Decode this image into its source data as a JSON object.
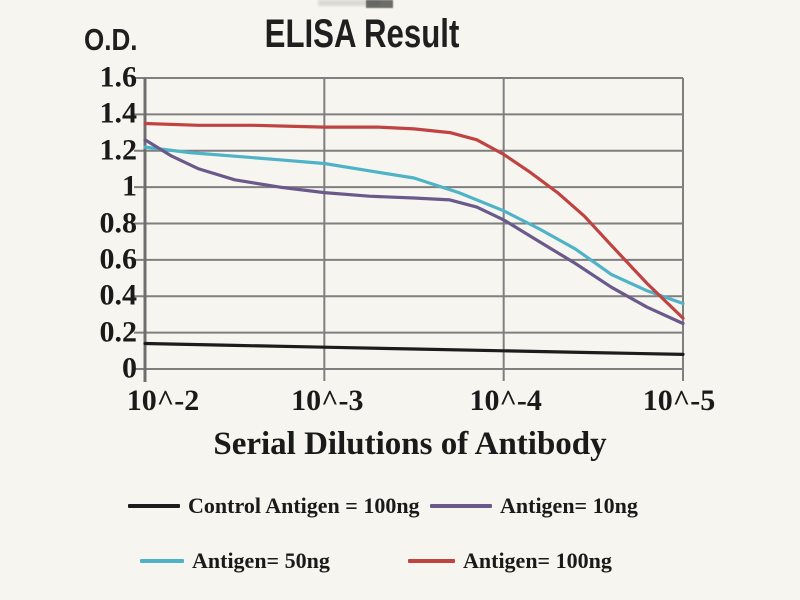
{
  "title": "ELISA Result",
  "y_axis_label": "O.D.",
  "x_axis_label": "Serial Dilutions of Antibody",
  "colors": {
    "background": "#f6f5f0",
    "gridline": "#7f7f7f",
    "axis": "#6e6e6e",
    "text": "#1a1a1a",
    "series_black": "#1c1c1c",
    "series_purple": "#6a5a8c",
    "series_cyan": "#4fb3c8",
    "series_red": "#c04341"
  },
  "chart_data": {
    "type": "line",
    "title": "ELISA Result",
    "xlabel": "Serial Dilutions of Antibody",
    "ylabel": "O.D.",
    "x_tick_labels": [
      "10^-2",
      "10^-3",
      "10^-4",
      "10^-5"
    ],
    "y_tick_labels": [
      "0",
      "0.2",
      "0.4",
      "0.6",
      "0.8",
      "1",
      "1.2",
      "1.4",
      "1.6"
    ],
    "y_tick_values": [
      0,
      0.2,
      0.4,
      0.6,
      0.8,
      1,
      1.2,
      1.4,
      1.6
    ],
    "ylim": [
      0,
      1.6
    ],
    "grid": true,
    "legend_position": "bottom",
    "series": [
      {
        "name": "Control Antigen = 100ng",
        "color": "#1c1c1c",
        "values_at_ticks": [
          0.14,
          0.12,
          0.1,
          0.08
        ],
        "points": [
          [
            0,
            0.14
          ],
          [
            0.5,
            0.13
          ],
          [
            1,
            0.12
          ],
          [
            1.5,
            0.11
          ],
          [
            2,
            0.1
          ],
          [
            2.5,
            0.09
          ],
          [
            3,
            0.08
          ]
        ]
      },
      {
        "name": "Antigen= 10ng",
        "color": "#6a5a8c",
        "values_at_ticks": [
          1.26,
          0.97,
          0.82,
          0.25
        ],
        "points": [
          [
            0,
            1.26
          ],
          [
            0.15,
            1.17
          ],
          [
            0.3,
            1.1
          ],
          [
            0.5,
            1.04
          ],
          [
            0.75,
            1.0
          ],
          [
            1,
            0.97
          ],
          [
            1.25,
            0.95
          ],
          [
            1.5,
            0.94
          ],
          [
            1.7,
            0.93
          ],
          [
            1.85,
            0.89
          ],
          [
            2,
            0.82
          ],
          [
            2.2,
            0.7
          ],
          [
            2.4,
            0.58
          ],
          [
            2.6,
            0.45
          ],
          [
            2.8,
            0.34
          ],
          [
            3,
            0.25
          ]
        ]
      },
      {
        "name": "Antigen= 50ng",
        "color": "#4fb3c8",
        "values_at_ticks": [
          1.22,
          1.13,
          0.87,
          0.36
        ],
        "points": [
          [
            0,
            1.22
          ],
          [
            0.25,
            1.19
          ],
          [
            0.5,
            1.17
          ],
          [
            0.75,
            1.15
          ],
          [
            1,
            1.13
          ],
          [
            1.25,
            1.09
          ],
          [
            1.5,
            1.05
          ],
          [
            1.75,
            0.97
          ],
          [
            2,
            0.87
          ],
          [
            2.2,
            0.77
          ],
          [
            2.4,
            0.66
          ],
          [
            2.6,
            0.52
          ],
          [
            2.8,
            0.43
          ],
          [
            3,
            0.36
          ]
        ]
      },
      {
        "name": "Antigen= 100ng",
        "color": "#c04341",
        "values_at_ticks": [
          1.35,
          1.33,
          1.18,
          0.28
        ],
        "points": [
          [
            0,
            1.35
          ],
          [
            0.3,
            1.34
          ],
          [
            0.6,
            1.34
          ],
          [
            1,
            1.33
          ],
          [
            1.3,
            1.33
          ],
          [
            1.5,
            1.32
          ],
          [
            1.7,
            1.3
          ],
          [
            1.85,
            1.26
          ],
          [
            2,
            1.18
          ],
          [
            2.15,
            1.08
          ],
          [
            2.3,
            0.97
          ],
          [
            2.45,
            0.84
          ],
          [
            2.6,
            0.68
          ],
          [
            2.8,
            0.47
          ],
          [
            3,
            0.28
          ]
        ]
      }
    ]
  },
  "legend": {
    "items": [
      {
        "label": "Control Antigen = 100ng",
        "series": 0
      },
      {
        "label": "Antigen= 10ng",
        "series": 1
      },
      {
        "label": "Antigen= 50ng",
        "series": 2
      },
      {
        "label": "Antigen= 100ng",
        "series": 3
      }
    ]
  }
}
